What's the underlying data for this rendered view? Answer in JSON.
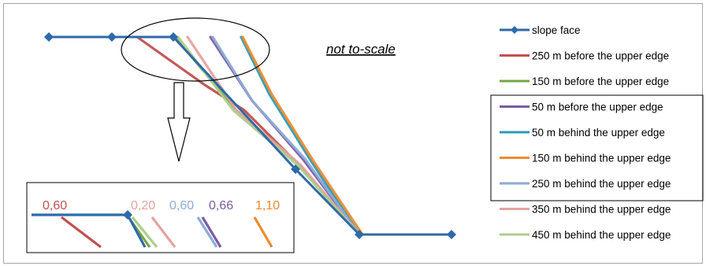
{
  "chart_data": {
    "type": "line",
    "annotation": "not to-scale",
    "colors": {
      "frame": "#a6a6a6",
      "slope_face": "#2e6aa8",
      "250_before": "#c0504d",
      "150_before": "#76a644",
      "50_before": "#7a5ca3",
      "50_behind": "#2b9cb5",
      "150_behind": "#ee8a2d",
      "250_behind": "#8eabd6",
      "350_behind": "#e4a3a0",
      "450_behind": "#aecd8c"
    },
    "legend": {
      "placement": "right",
      "boxed_group": [
        "50_before",
        "50_behind",
        "150_behind",
        "250_behind"
      ]
    },
    "series": [
      {
        "key": "slope_face",
        "name": "slope face",
        "marker": "diamond",
        "points": [
          [
            62,
            47
          ],
          [
            142,
            47
          ],
          [
            220,
            47
          ],
          [
            375,
            215
          ],
          [
            456,
            298
          ],
          [
            573,
            298
          ]
        ]
      },
      {
        "key": "250_before",
        "name": "250 m before the upper edge",
        "points": [
          [
            174,
            47
          ],
          [
            260,
            108
          ],
          [
            310,
            140
          ],
          [
            375,
            205
          ],
          [
            456,
            298
          ]
        ]
      },
      {
        "key": "150_before",
        "name": "150 m before the upper edge",
        "points": [
          [
            222,
            47
          ],
          [
            300,
            140
          ],
          [
            380,
            210
          ],
          [
            456,
            298
          ]
        ]
      },
      {
        "key": "50_before",
        "name": "50 m before the upper edge",
        "points": [
          [
            267,
            47
          ],
          [
            320,
            128
          ],
          [
            385,
            203
          ],
          [
            456,
            298
          ]
        ]
      },
      {
        "key": "50_behind",
        "name": "50 m behind the upper edge",
        "points": [
          [
            306,
            47
          ],
          [
            342,
            120
          ],
          [
            395,
            205
          ],
          [
            456,
            298
          ]
        ]
      },
      {
        "key": "150_behind",
        "name": "150 m behind the upper edge",
        "points": [
          [
            308,
            47
          ],
          [
            345,
            120
          ],
          [
            398,
            205
          ],
          [
            460,
            298
          ]
        ]
      },
      {
        "key": "250_behind",
        "name": "250 m behind the upper edge",
        "points": [
          [
            270,
            47
          ],
          [
            320,
            128
          ],
          [
            388,
            203
          ],
          [
            456,
            298
          ]
        ]
      },
      {
        "key": "350_behind",
        "name": "350 m behind the upper edge",
        "points": [
          [
            238,
            47
          ],
          [
            300,
            140
          ],
          [
            382,
            210
          ],
          [
            456,
            298
          ]
        ]
      },
      {
        "key": "450_behind",
        "name": "450 m behind the upper edge",
        "points": [
          [
            226,
            47
          ],
          [
            296,
            140
          ],
          [
            378,
            210
          ],
          [
            456,
            298
          ]
        ]
      }
    ],
    "inset": {
      "labels": [
        {
          "text": "0,60",
          "color_key": "250_before"
        },
        {
          "text": "0,20",
          "color_key": "350_behind"
        },
        {
          "text": "0,60",
          "color_key": "250_behind"
        },
        {
          "text": "0,66",
          "color_key": "50_before"
        },
        {
          "text": "1,10",
          "color_key": "150_behind"
        }
      ]
    }
  }
}
